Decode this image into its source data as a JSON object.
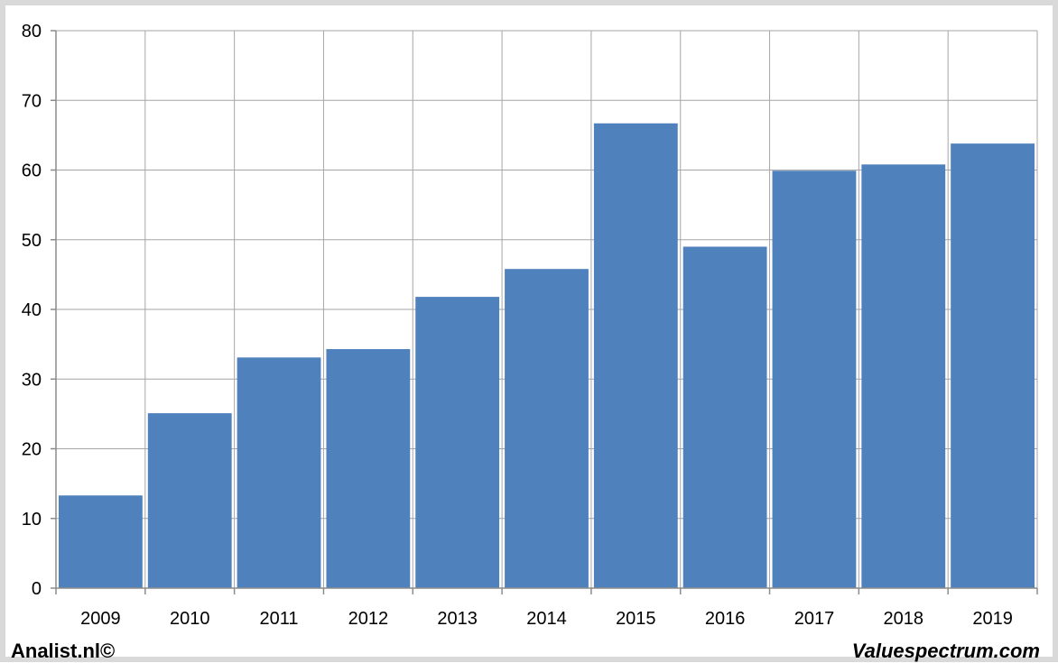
{
  "chart_data": {
    "type": "bar",
    "title": "",
    "xlabel": "",
    "ylabel": "",
    "categories": [
      "2009",
      "2010",
      "2011",
      "2012",
      "2013",
      "2014",
      "2015",
      "2016",
      "2017",
      "2018",
      "2019"
    ],
    "values": [
      13.3,
      25.1,
      33.1,
      34.3,
      41.8,
      45.8,
      66.7,
      49.0,
      59.9,
      60.8,
      63.8
    ],
    "ylim": [
      0,
      80
    ],
    "yticks": [
      0,
      10,
      20,
      30,
      40,
      50,
      60,
      70,
      80
    ],
    "grid": true,
    "legend": "none",
    "colors": {
      "bar": "#4f81bd",
      "grid": "#a6a6a6",
      "axis": "#8c8c8c"
    }
  },
  "footer": {
    "left": "Analist.nl©",
    "right": "Valuespectrum.com"
  }
}
